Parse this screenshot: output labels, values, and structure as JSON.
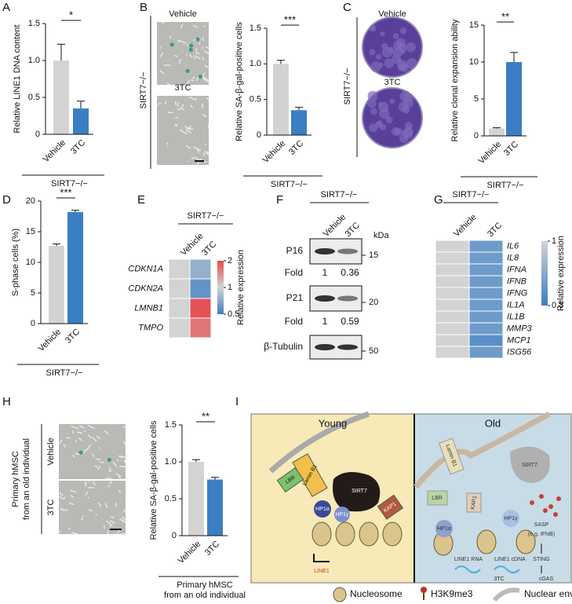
{
  "chart_data": [
    {
      "type": "bar",
      "panel": "A",
      "ylabel": "Relative LINE1 DNA content",
      "categories": [
        "Vehicle",
        "3TC"
      ],
      "values": [
        1.0,
        0.35
      ],
      "errors": [
        0.22,
        0.1
      ],
      "colors": [
        "#d3d3d3",
        "#3b7ec4"
      ],
      "ylim": [
        0,
        1.5
      ],
      "yticks": [
        0,
        0.5,
        {
          "value": 1,
          "label": "1.0"
        },
        1.5
      ],
      "significance": "*",
      "group_label": [
        "SIRT7−/−"
      ]
    },
    {
      "type": "bar",
      "panel": "B",
      "ylabel": "Relative SA-β-gal-positive cells",
      "categories": [
        "Vehicle",
        "3TC"
      ],
      "values": [
        1.0,
        0.35
      ],
      "errors": [
        0.05,
        0.04
      ],
      "colors": [
        "#d3d3d3",
        "#3b7ec4"
      ],
      "ylim": [
        0,
        1.5
      ],
      "yticks": [
        0,
        0.5,
        {
          "value": 1,
          "label": "1.0"
        },
        1.5
      ],
      "significance": "***",
      "group_label": [
        "SIRT7−/−"
      ]
    },
    {
      "type": "bar",
      "panel": "C",
      "ylabel": "Relative clonal expansion ability",
      "categories": [
        "Vehicle",
        "3TC"
      ],
      "values": [
        1.0,
        10.0
      ],
      "errors": [
        0.1,
        1.3
      ],
      "colors": [
        "#d3d3d3",
        "#3b7ec4"
      ],
      "ylim": [
        0,
        15
      ],
      "yticks": [
        0,
        5,
        10,
        15
      ],
      "significance": "**",
      "group_label": [
        "SIRT7−/−"
      ]
    },
    {
      "type": "bar",
      "panel": "D",
      "ylabel": "S-phase cells (%)",
      "categories": [
        "Vehicle",
        "3TC"
      ],
      "values": [
        12.7,
        18.2
      ],
      "errors": [
        0.3,
        0.3
      ],
      "colors": [
        "#d3d3d3",
        "#3b7ec4"
      ],
      "ylim": [
        0,
        20
      ],
      "yticks": [
        0,
        5,
        10,
        15,
        20
      ],
      "significance": "***",
      "group_label": [
        "SIRT7−/−"
      ]
    },
    {
      "type": "heatmap",
      "panel": "E",
      "group_label": "SIRT7−/−",
      "columns": [
        "Vehicle",
        "3TC"
      ],
      "rows": [
        "CDKN1A",
        "CDKN2A",
        "LMNB1",
        "TMPO"
      ],
      "values": [
        [
          1,
          0.75
        ],
        [
          1,
          0.6
        ],
        [
          1,
          1.9
        ],
        [
          1,
          1.6
        ]
      ],
      "colorbar_label": "Relative expression",
      "clim": [
        0.5,
        2
      ],
      "cticks": [
        2,
        1,
        0.5
      ],
      "log_scale": true,
      "colors": [
        "#3b7ec4",
        "#d3d3d3",
        "#e8474a"
      ]
    },
    {
      "type": "heatmap",
      "panel": "G",
      "group_label": "SIRT7−/−",
      "columns": [
        "Vehicle",
        "3TC"
      ],
      "rows": [
        "IL6",
        "IL8",
        "IFNA",
        "IFNB",
        "IFNG",
        "IL1A",
        "IL1B",
        "MMP3",
        "MCP1",
        "ISG56"
      ],
      "values": [
        [
          1,
          0.45
        ],
        [
          1,
          0.45
        ],
        [
          1,
          0.45
        ],
        [
          1,
          0.45
        ],
        [
          1,
          0.45
        ],
        [
          1,
          0.45
        ],
        [
          1,
          0.45
        ],
        [
          1,
          0.45
        ],
        [
          1,
          0.38
        ],
        [
          1,
          0.45
        ]
      ],
      "colorbar_label": "Relative expression",
      "clim": [
        0.3,
        1
      ],
      "cticks": [
        1,
        0.3
      ],
      "log_scale": true,
      "colors": [
        "#3b7ec4",
        "#d3d3d3"
      ]
    },
    {
      "type": "bar",
      "panel": "H",
      "ylabel": "Relative SA-β-gal-positive cells",
      "categories": [
        "Vehicle",
        "3TC"
      ],
      "values": [
        1.0,
        0.76
      ],
      "errors": [
        0.03,
        0.03
      ],
      "colors": [
        "#d3d3d3",
        "#3b7ec4"
      ],
      "ylim": [
        0,
        1.5
      ],
      "yticks": [
        0,
        0.5,
        {
          "value": 1,
          "label": "1.0"
        },
        1.5
      ],
      "significance": "**",
      "group_label": [
        "Primary hMSC",
        "from an old individual"
      ]
    }
  ],
  "images": [
    {
      "side_label": [
        "SIRT7−/−"
      ],
      "labels": [
        "Vehicle",
        "3TC"
      ]
    },
    {
      "side_label": [
        "SIRT7−/−"
      ],
      "labels": [
        "Vehicle",
        "3TC"
      ]
    },
    {
      "side_label": [
        "Primary hMSC",
        "from an old individual"
      ],
      "labels": [
        "Vehicle",
        "3TC"
      ]
    }
  ],
  "blot": {
    "panel": "F",
    "group_label": "SIRT7−/−",
    "columns": [
      "Vehicle",
      "3TC"
    ],
    "unit": "kDa",
    "rows": [
      {
        "label": "P16",
        "marker": 15
      },
      {
        "label": "Fold",
        "values": [
          1,
          0.36
        ]
      },
      {
        "label": "P21",
        "marker": 20
      },
      {
        "label": "Fold",
        "values": [
          1,
          0.59
        ]
      },
      {
        "label": "β-Tubulin",
        "marker": 50
      }
    ]
  },
  "diagram": {
    "panel": "I",
    "young_title": "Young",
    "old_title": "Old",
    "young_labels": [
      "Lamin B1",
      "LBR",
      "SIRT7",
      "KAP1",
      "HP1α",
      "HP1γ",
      "LINE1"
    ],
    "old_labels": [
      "Lamin B1",
      "SIRT7",
      "LBR",
      "KAP1",
      "HP1γ",
      "HP1α",
      "SASP",
      "(e.g. IFNB)",
      "STING",
      "cGAS",
      "LINE1 RNA",
      "LINE1 cDNA",
      "3TC"
    ],
    "legend": [
      "Nucleosome",
      "H3K9me3",
      "Nuclear envelope"
    ]
  }
}
